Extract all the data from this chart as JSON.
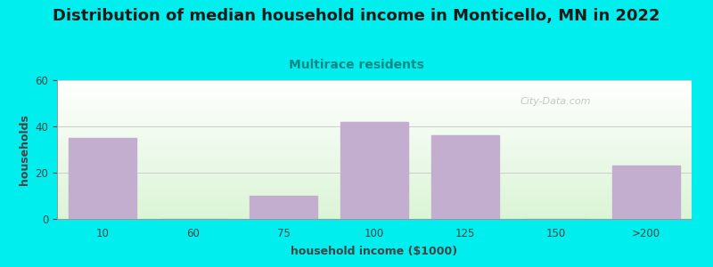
{
  "title": "Distribution of median household income in Monticello, MN in 2022",
  "subtitle": "Multirace residents",
  "xlabel": "household income ($1000)",
  "ylabel": "households",
  "bar_categories": [
    "10",
    "60",
    "75",
    "100",
    "125",
    "150",
    ">200"
  ],
  "bar_values": [
    35,
    0,
    10,
    42,
    36,
    0,
    23
  ],
  "bar_color": "#c4aed0",
  "ylim": [
    0,
    60
  ],
  "yticks": [
    0,
    20,
    40,
    60
  ],
  "background_color": "#00eeee",
  "grid_color": "#cccccc",
  "title_fontsize": 13,
  "subtitle_fontsize": 10,
  "subtitle_color": "#008888",
  "axis_label_fontsize": 9,
  "tick_fontsize": 8.5,
  "watermark_text": "City-Data.com",
  "bar_positions": [
    0,
    1,
    2,
    3,
    4,
    5,
    6
  ]
}
